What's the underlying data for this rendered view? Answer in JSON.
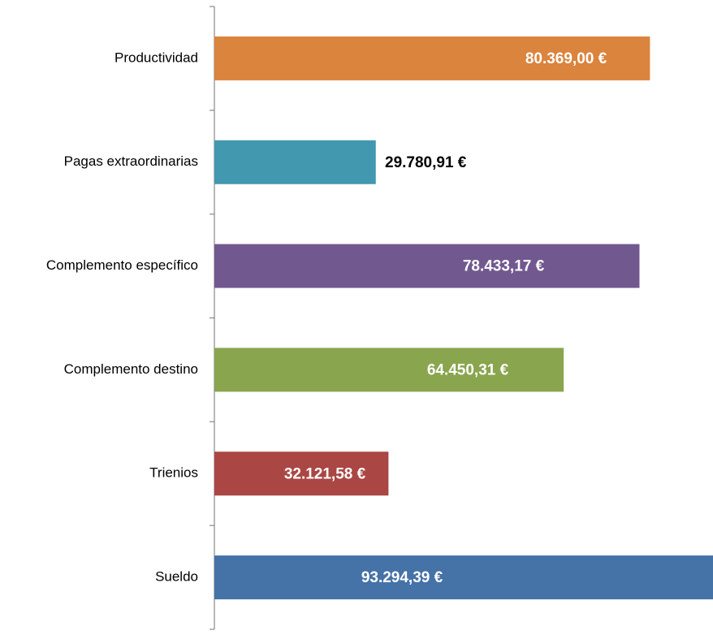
{
  "chart_data": {
    "type": "bar",
    "orientation": "horizontal",
    "categories": [
      "Sueldo",
      "Trienios",
      "Complemento destino",
      "Complemento específico",
      "Pagas extraordinarias",
      "Productividad"
    ],
    "values": [
      93294.39,
      32121.58,
      64450.31,
      78433.17,
      29780.91,
      80369.0
    ],
    "value_labels": [
      "93.294,39 €",
      "32.121,58 €",
      "64.450,31 €",
      "78.433,17 €",
      "29.780,91 €",
      "80.369,00 €"
    ],
    "colors": [
      "#4572a7",
      "#aa4643",
      "#89a54e",
      "#71588f",
      "#4198af",
      "#db843d"
    ],
    "xlim": [
      0,
      92000
    ]
  }
}
